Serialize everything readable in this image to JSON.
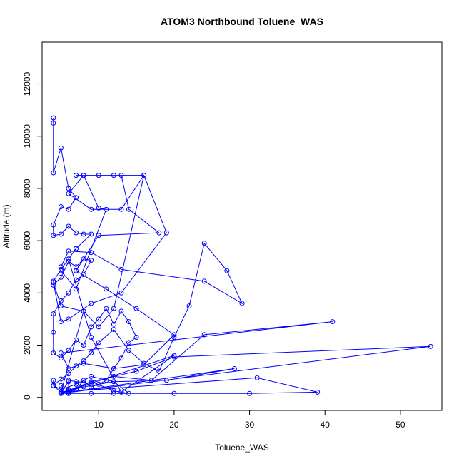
{
  "chart_data": {
    "type": "line",
    "title": "ATOM3 Northbound Toluene_WAS",
    "xlabel": "Toluene_WAS",
    "ylabel": "Altitude (m)",
    "xlim": [
      2.5,
      55.5
    ],
    "ylim": [
      -500,
      13600
    ],
    "x_ticks": [
      10,
      20,
      30,
      40,
      50
    ],
    "y_ticks": [
      0,
      2000,
      4000,
      6000,
      8000,
      10000,
      12000
    ],
    "grid": false,
    "legend": "none",
    "series_color": "#0000ff",
    "series": [
      {
        "x": [
          4,
          4,
          4,
          5,
          6,
          7,
          6,
          5,
          4,
          4,
          5,
          6,
          7,
          8,
          9,
          7,
          6,
          5,
          4,
          4,
          5,
          6,
          7,
          8,
          9,
          8,
          7,
          6,
          5,
          4,
          4,
          4,
          5,
          6,
          7,
          8,
          9,
          10,
          11,
          12,
          13,
          14,
          15,
          14,
          13,
          12,
          11,
          10,
          9,
          8,
          7,
          6,
          5,
          5,
          6,
          6,
          5,
          4,
          5,
          6,
          7,
          8,
          9,
          10,
          12,
          14,
          16,
          18,
          20,
          22,
          24,
          27,
          29,
          24,
          13,
          9,
          6,
          5,
          5,
          7,
          11,
          10,
          8,
          6,
          9,
          13,
          16,
          19,
          13,
          9,
          6,
          5,
          4,
          5,
          8,
          10,
          12,
          16,
          7,
          8,
          10,
          12,
          13,
          14,
          18,
          10,
          7,
          11,
          15,
          20,
          16,
          12,
          8,
          6,
          5,
          41,
          24,
          17,
          12,
          9,
          7,
          6,
          6,
          5,
          54,
          20,
          15,
          9,
          6,
          28,
          19,
          12,
          8,
          6,
          5,
          31,
          39,
          30,
          20,
          12,
          9,
          6,
          5,
          8,
          6,
          9,
          13,
          20,
          5,
          9,
          12,
          14,
          12,
          9,
          7,
          5,
          4,
          4
        ],
        "y": [
          10700,
          10500,
          8600,
          9550,
          8000,
          7650,
          7200,
          7300,
          6600,
          6200,
          6250,
          6550,
          6300,
          6250,
          6250,
          5700,
          5300,
          4900,
          4450,
          4300,
          4600,
          5200,
          5000,
          5300,
          5250,
          4700,
          4500,
          4000,
          3700,
          3200,
          2500,
          1700,
          1500,
          1800,
          2200,
          2000,
          2700,
          3000,
          3400,
          2800,
          3300,
          2900,
          2300,
          2100,
          1500,
          1100,
          650,
          500,
          400,
          650,
          300,
          150,
          150,
          450,
          300,
          600,
          200,
          450,
          700,
          900,
          1200,
          1400,
          1700,
          2100,
          2600,
          1800,
          1300,
          1000,
          2300,
          3500,
          5900,
          4850,
          3600,
          4450,
          4900,
          5550,
          5600,
          5000,
          4850,
          4150,
          7200,
          7250,
          8500,
          7800,
          7200,
          7200,
          8500,
          6300,
          4000,
          3600,
          3000,
          2900,
          4400,
          3500,
          3300,
          2700,
          3400,
          8500,
          8500,
          8500,
          8500,
          8500,
          8500,
          7200,
          6300,
          6200,
          4850,
          4150,
          3400,
          2400,
          1250,
          1100,
          1300,
          1100,
          1700,
          2900,
          2400,
          650,
          800,
          550,
          600,
          650,
          300,
          150,
          1950,
          1550,
          1000,
          600,
          200,
          1100,
          650,
          600,
          400,
          250,
          200,
          750,
          200,
          150,
          150,
          150,
          150,
          150,
          200,
          3300,
          5300,
          2300,
          200,
          1600,
          150,
          600,
          250,
          150,
          600,
          800,
          500,
          300,
          450,
          650
        ]
      }
    ]
  }
}
